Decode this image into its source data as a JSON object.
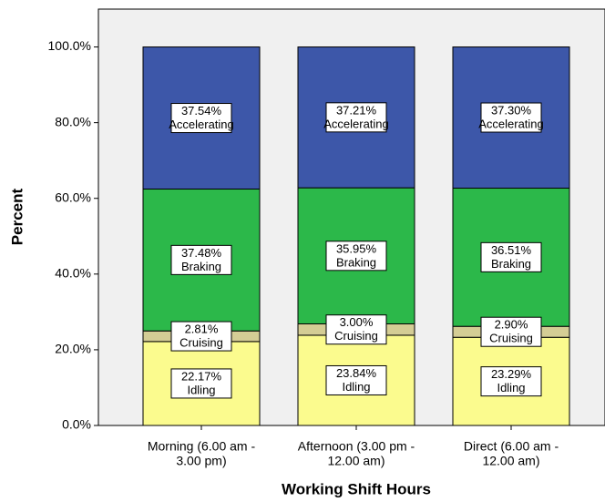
{
  "chart_data": {
    "type": "stacked_bar",
    "categories": [
      [
        "Morning (6.00 am -",
        "3.00 pm)"
      ],
      [
        "Afternoon (3.00 pm -",
        "12.00 am)"
      ],
      [
        "Direct (6.00 am -",
        "12.00 am)"
      ]
    ],
    "series": [
      {
        "name": "Idling",
        "color": "#fbfb8e",
        "values": [
          22.17,
          23.84,
          23.29
        ],
        "value_labels": [
          "22.17%",
          "23.84%",
          "23.29%"
        ]
      },
      {
        "name": "Cruising",
        "color": "#d4cd95",
        "values": [
          2.81,
          3.0,
          2.9
        ],
        "value_labels": [
          "2.81%",
          "3.00%",
          "2.90%"
        ]
      },
      {
        "name": "Braking",
        "color": "#2cb84a",
        "values": [
          37.48,
          35.95,
          36.51
        ],
        "value_labels": [
          "37.48%",
          "35.95%",
          "36.51%"
        ]
      },
      {
        "name": "Accelerating",
        "color": "#3d57a9",
        "values": [
          37.54,
          37.21,
          37.3
        ],
        "value_labels": [
          "37.54%",
          "37.21%",
          "37.30%"
        ]
      }
    ],
    "ylim": [
      0,
      110
    ],
    "yticks": [
      {
        "value": 0,
        "label": "0.0%"
      },
      {
        "value": 20,
        "label": "20.0%"
      },
      {
        "value": 40,
        "label": "40.0%"
      },
      {
        "value": 60,
        "label": "60.0%"
      },
      {
        "value": 80,
        "label": "80.0%"
      },
      {
        "value": 100,
        "label": "100.0%"
      }
    ],
    "ylabel": "Percent",
    "xlabel": "Working Shift Hours"
  }
}
